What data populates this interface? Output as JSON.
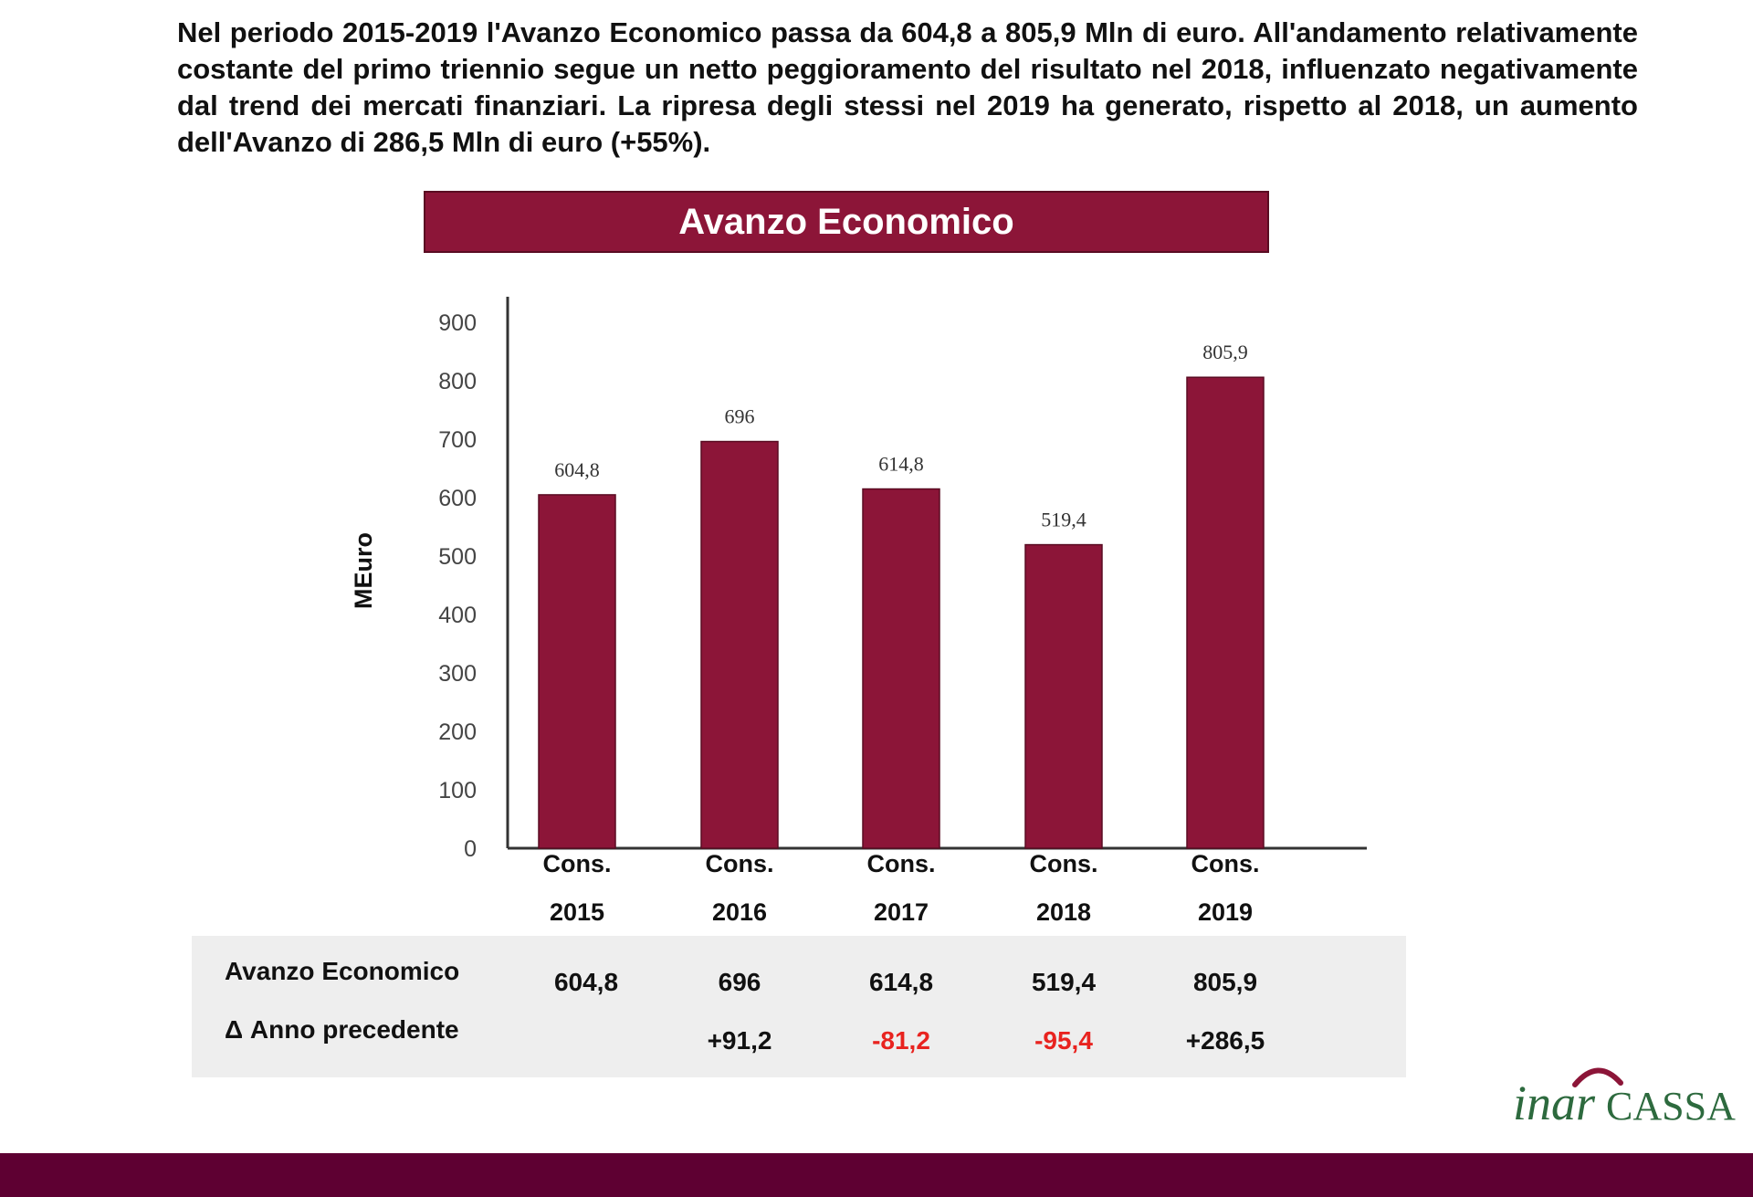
{
  "intro_text": "Nel periodo 2015-2019 l'Avanzo Economico passa da 604,8 a 805,9 Mln di euro. All'andamento relativamente costante del primo triennio segue un netto peggioramento del risultato nel 2018, influenzato negativamente dal trend dei mercati finanziari. La ripresa degli stessi nel 2019 ha generato, rispetto al 2018, un aumento dell'Avanzo di 286,5 Mln di euro (+55%).",
  "chart_data": {
    "type": "bar",
    "title": "Avanzo Economico",
    "ylabel": "MEuro",
    "xlabel": "",
    "ylim": [
      0,
      900
    ],
    "yticks": [
      "0",
      "100",
      "200",
      "300",
      "400",
      "500",
      "600",
      "700",
      "800",
      "900"
    ],
    "categories": [
      {
        "line1": "Cons.",
        "line2": "2015"
      },
      {
        "line1": "Cons.",
        "line2": "2016"
      },
      {
        "line1": "Cons.",
        "line2": "2017"
      },
      {
        "line1": "Cons.",
        "line2": "2018"
      },
      {
        "line1": "Cons.",
        "line2": "2019"
      }
    ],
    "values": [
      604.8,
      696,
      614.8,
      519.4,
      805.9
    ],
    "value_labels": [
      "604,8",
      "696",
      "614,8",
      "519,4",
      "805,9"
    ],
    "bar_color": "#8c1538",
    "grid": false
  },
  "table": {
    "rows": [
      {
        "label": "Avanzo Economico",
        "cells": [
          "604,8",
          "696",
          "614,8",
          "519,4",
          "805,9"
        ],
        "negative": [
          false,
          false,
          false,
          false,
          false
        ]
      },
      {
        "label": "Δ Anno precedente",
        "cells": [
          "",
          "+91,2",
          "-81,2",
          "-95,4",
          "+286,5"
        ],
        "negative": [
          false,
          false,
          true,
          true,
          false
        ]
      }
    ]
  },
  "logo": {
    "part1": "inar",
    "part2": "CASSA",
    "color": "#2d6a3e",
    "arc_color": "#8c1538"
  },
  "colors": {
    "accent": "#8c1538",
    "footer": "#5e0032",
    "negative": "#e8231f"
  }
}
